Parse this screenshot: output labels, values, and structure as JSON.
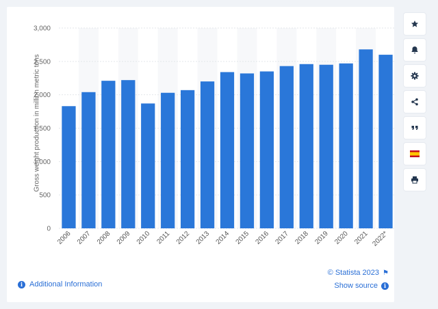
{
  "chart_data": {
    "type": "bar",
    "categories": [
      "2006",
      "2007",
      "2008",
      "2009",
      "2010",
      "2011",
      "2012",
      "2013",
      "2014",
      "2015",
      "2016",
      "2017",
      "2018",
      "2019",
      "2020",
      "2021",
      "2022*"
    ],
    "values": [
      1830,
      2040,
      2210,
      2220,
      1870,
      2030,
      2070,
      2200,
      2340,
      2320,
      2350,
      2430,
      2460,
      2450,
      2470,
      2680,
      2600
    ],
    "title": "",
    "xlabel": "",
    "ylabel": "Gross weight production in million metric tons",
    "ylim": [
      0,
      3000
    ],
    "yticks": [
      0,
      500,
      1000,
      1500,
      2000,
      2500,
      3000
    ],
    "ytick_labels": [
      "0",
      "500",
      "1,000",
      "1,500",
      "2,000",
      "2,500",
      "3,000"
    ],
    "grid": true,
    "bar_color": "#2a77d9"
  },
  "footer": {
    "additional_info": "Additional Information",
    "credit": "© Statista 2023",
    "show_source": "Show source"
  },
  "sidebar": {
    "buttons": [
      "star-icon",
      "bell-icon",
      "gear-icon",
      "share-icon",
      "quote-icon",
      "flag-spain-icon",
      "print-icon"
    ]
  },
  "colors": {
    "accent": "#2a6fd6",
    "bar": "#2a77d9",
    "band": "#f7f8fa",
    "page_bg": "#f0f3f7"
  }
}
